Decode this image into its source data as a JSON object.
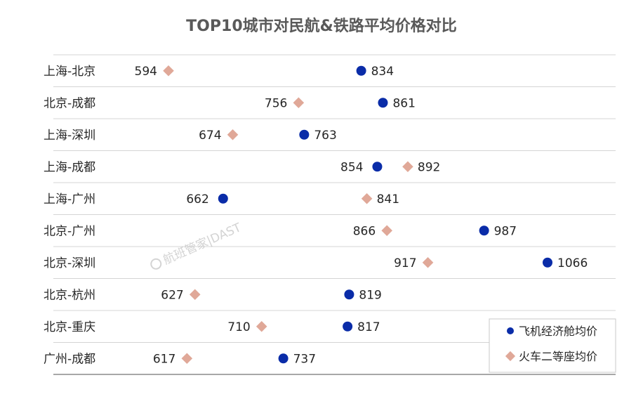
{
  "chart_data": {
    "type": "dumbbell",
    "title": "TOP10城市对民航&铁路平均价格对比",
    "categories": [
      "上海-北京",
      "北京-成都",
      "上海-深圳",
      "上海-成都",
      "上海-广州",
      "北京-广州",
      "北京-深圳",
      "北京-杭州",
      "北京-重庆",
      "广州-成都"
    ],
    "series": [
      {
        "name": "飞机经济舱均价",
        "values": [
          834,
          861,
          763,
          854,
          662,
          987,
          1066,
          819,
          817,
          737
        ],
        "color": "#0a2ca8",
        "marker": "circle"
      },
      {
        "name": "火车二等座均价",
        "values": [
          594,
          756,
          674,
          892,
          841,
          866,
          917,
          627,
          710,
          617
        ],
        "color": "#e0a898",
        "marker": "diamond"
      }
    ],
    "xlim": [
      450,
      1120
    ],
    "grid": true,
    "legend_position": "bottom-right"
  },
  "watermark": {
    "text": "航班管家|DAST",
    "icon": "airline-logo-icon"
  }
}
